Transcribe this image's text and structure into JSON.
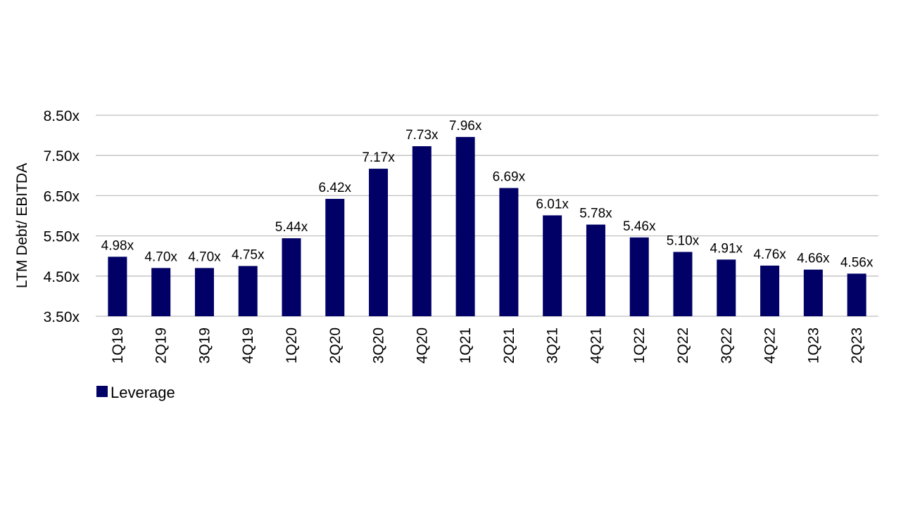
{
  "chart_data": {
    "type": "bar",
    "title": "",
    "xlabel": "",
    "ylabel": "LTM Debt/ EBITDA",
    "ylim": [
      3.5,
      8.5
    ],
    "yticks": [
      3.5,
      4.5,
      5.5,
      6.5,
      7.5,
      8.5
    ],
    "ytick_labels": [
      "3.50x",
      "4.50x",
      "5.50x",
      "6.50x",
      "7.50x",
      "8.50x"
    ],
    "grid": true,
    "legend_position": "bottom-left",
    "categories": [
      "1Q19",
      "2Q19",
      "3Q19",
      "4Q19",
      "1Q20",
      "2Q20",
      "3Q20",
      "4Q20",
      "1Q21",
      "2Q21",
      "3Q21",
      "4Q21",
      "1Q22",
      "2Q22",
      "3Q22",
      "4Q22",
      "1Q23",
      "2Q23"
    ],
    "series": [
      {
        "name": "Leverage",
        "color": "#000066",
        "values": [
          4.98,
          4.7,
          4.7,
          4.75,
          5.44,
          6.42,
          7.17,
          7.73,
          7.96,
          6.69,
          6.01,
          5.78,
          5.46,
          5.1,
          4.91,
          4.76,
          4.66,
          4.56
        ],
        "labels": [
          "4.98x",
          "4.70x",
          "4.70x",
          "4.75x",
          "5.44x",
          "6.42x",
          "7.17x",
          "7.73x",
          "7.96x",
          "6.69x",
          "6.01x",
          "5.78x",
          "5.46x",
          "5.10x",
          "4.91x",
          "4.76x",
          "4.66x",
          "4.56x"
        ]
      }
    ]
  }
}
